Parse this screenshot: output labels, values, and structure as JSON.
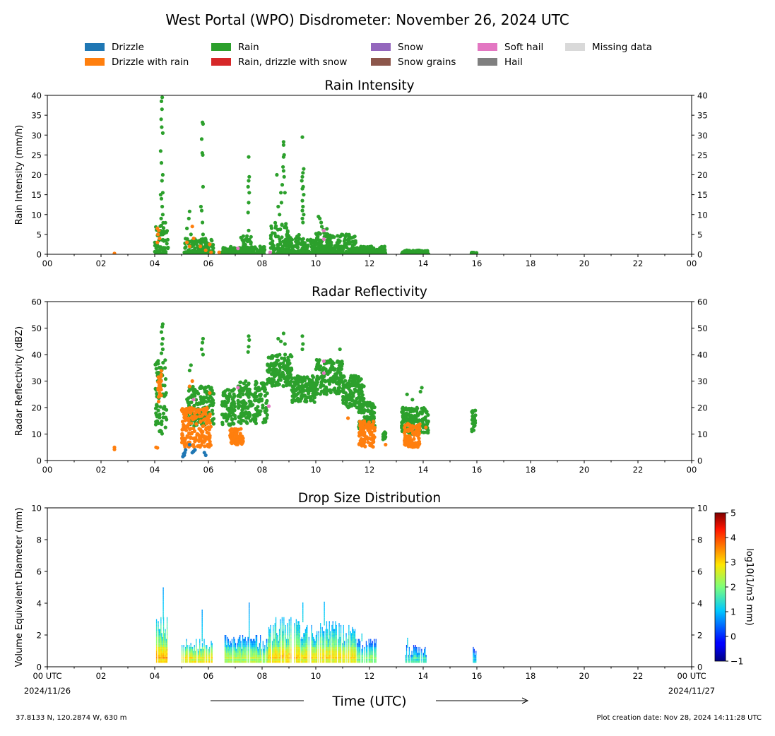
{
  "title": "West Portal (WPO) Disdrometer: November 26, 2024 UTC",
  "legend": [
    {
      "label": "Drizzle",
      "color": "#1f77b4"
    },
    {
      "label": "Drizzle with rain",
      "color": "#ff7f0e"
    },
    {
      "label": "Rain",
      "color": "#2ca02c"
    },
    {
      "label": "Rain, drizzle with snow",
      "color": "#d62728"
    },
    {
      "label": "Snow",
      "color": "#9467bd"
    },
    {
      "label": "Snow grains",
      "color": "#8c564b"
    },
    {
      "label": "Soft hail",
      "color": "#e377c2"
    },
    {
      "label": "Hail",
      "color": "#7f7f7f"
    },
    {
      "label": "Missing data",
      "color": "#d9d9d9"
    }
  ],
  "footer": {
    "location": "37.8133 N, 120.2874 W, 630 m",
    "created": "Plot creation date: Nov 28, 2024 14:11:28 UTC",
    "time_axis_label": "Time (UTC)"
  },
  "chart_data": [
    {
      "type": "scatter",
      "title": "Rain Intensity",
      "ylabel": "Rain Intensity (mm/h)",
      "xlim": [
        0,
        24
      ],
      "ylim": [
        0,
        40
      ],
      "yticks": [
        0,
        5,
        10,
        15,
        20,
        25,
        30,
        35,
        40
      ],
      "xticklabels": [
        "00",
        "02",
        "04",
        "06",
        "08",
        "10",
        "12",
        "14",
        "16",
        "18",
        "20",
        "22",
        "00"
      ],
      "series": [
        {
          "name": "Rain",
          "color": "#2ca02c",
          "segments": [
            {
              "x0": 4.0,
              "x1": 4.5,
              "ymax": 8
            },
            {
              "x0": 5.1,
              "x1": 6.2,
              "ymax": 4
            },
            {
              "x0": 6.5,
              "x1": 8.1,
              "ymax": 2
            },
            {
              "x0": 7.2,
              "x1": 7.6,
              "ymax": 5
            },
            {
              "x0": 8.3,
              "x1": 9.0,
              "ymax": 8
            },
            {
              "x0": 8.8,
              "x1": 9.5,
              "ymax": 5
            },
            {
              "x0": 9.5,
              "x1": 10.2,
              "ymax": 4
            },
            {
              "x0": 10.0,
              "x1": 10.5,
              "ymax": 7
            },
            {
              "x0": 10.4,
              "x1": 11.5,
              "ymax": 5
            },
            {
              "x0": 11.5,
              "x1": 12.6,
              "ymax": 2
            },
            {
              "x0": 13.2,
              "x1": 14.2,
              "ymax": 1
            },
            {
              "x0": 15.8,
              "x1": 16.0,
              "ymax": 0.5
            }
          ],
          "points": [
            [
              4.28,
              39.5
            ],
            [
              4.25,
              38.5
            ],
            [
              4.27,
              36.5
            ],
            [
              4.24,
              34
            ],
            [
              4.26,
              32
            ],
            [
              4.3,
              30.5
            ],
            [
              4.22,
              26
            ],
            [
              4.25,
              23
            ],
            [
              4.3,
              20
            ],
            [
              4.27,
              18.5
            ],
            [
              4.3,
              15.5
            ],
            [
              4.22,
              15
            ],
            [
              4.25,
              14
            ],
            [
              4.28,
              12
            ],
            [
              4.3,
              10
            ],
            [
              4.24,
              9
            ],
            [
              4.3,
              5
            ],
            [
              5.3,
              10.8
            ],
            [
              5.27,
              9
            ],
            [
              5.2,
              6.5
            ],
            [
              5.35,
              5
            ],
            [
              5.78,
              33.2
            ],
            [
              5.8,
              32.8
            ],
            [
              5.75,
              29
            ],
            [
              5.77,
              25.5
            ],
            [
              5.79,
              25
            ],
            [
              5.8,
              17
            ],
            [
              5.72,
              12
            ],
            [
              5.75,
              11
            ],
            [
              5.78,
              8
            ],
            [
              5.8,
              5
            ],
            [
              7.5,
              24.5
            ],
            [
              7.52,
              19.5
            ],
            [
              7.5,
              18.5
            ],
            [
              7.48,
              17
            ],
            [
              7.52,
              15.5
            ],
            [
              7.5,
              13
            ],
            [
              7.48,
              10.5
            ],
            [
              7.5,
              6
            ],
            [
              8.55,
              20
            ],
            [
              8.8,
              28.3
            ],
            [
              8.8,
              27.5
            ],
            [
              8.82,
              25
            ],
            [
              8.8,
              24.5
            ],
            [
              8.78,
              22
            ],
            [
              8.8,
              21
            ],
            [
              8.82,
              19.5
            ],
            [
              8.75,
              17.5
            ],
            [
              8.85,
              15.5
            ],
            [
              8.7,
              15.5
            ],
            [
              8.72,
              13
            ],
            [
              8.6,
              12
            ],
            [
              8.65,
              10
            ],
            [
              9.5,
              29.5
            ],
            [
              9.55,
              21.5
            ],
            [
              9.52,
              20.5
            ],
            [
              9.5,
              19.5
            ],
            [
              9.48,
              18.5
            ],
            [
              9.53,
              17
            ],
            [
              9.5,
              16.5
            ],
            [
              9.55,
              15
            ],
            [
              9.5,
              13.5
            ],
            [
              9.52,
              12
            ],
            [
              9.5,
              11
            ],
            [
              9.55,
              10
            ],
            [
              9.5,
              9
            ],
            [
              9.52,
              8
            ],
            [
              10.1,
              9.5
            ],
            [
              10.15,
              9
            ],
            [
              10.2,
              8
            ]
          ]
        },
        {
          "name": "Drizzle with rain",
          "color": "#ff7f0e",
          "points": [
            [
              2.5,
              0.2
            ],
            [
              4.1,
              6.5
            ],
            [
              4.15,
              6
            ],
            [
              4.12,
              5
            ],
            [
              4.18,
              4
            ],
            [
              4.1,
              3
            ],
            [
              5.2,
              3
            ],
            [
              5.4,
              7
            ],
            [
              5.45,
              4
            ],
            [
              5.3,
              2
            ],
            [
              5.7,
              2
            ],
            [
              5.9,
              1
            ],
            [
              6.05,
              2.5
            ],
            [
              6.1,
              0.5
            ],
            [
              6.4,
              0.5
            ]
          ]
        },
        {
          "name": "Soft hail",
          "color": "#e377c2",
          "points": [
            [
              7.1,
              1.5
            ],
            [
              8.3,
              0.5
            ],
            [
              10.3,
              6
            ],
            [
              10.3,
              3.8
            ]
          ]
        }
      ]
    },
    {
      "type": "scatter",
      "title": "Radar Reflectivity",
      "ylabel": "Radar Reflectivity (dBZ)",
      "xlim": [
        0,
        24
      ],
      "ylim": [
        0,
        60
      ],
      "yticks": [
        0,
        10,
        20,
        30,
        40,
        50,
        60
      ],
      "xticklabels": [
        "00",
        "02",
        "04",
        "06",
        "08",
        "10",
        "12",
        "14",
        "16",
        "18",
        "20",
        "22",
        "00"
      ],
      "series": [
        {
          "name": "Rain",
          "color": "#2ca02c",
          "segments": [
            {
              "x0": 4.0,
              "x1": 4.45,
              "ymin": 10,
              "ymax": 38
            },
            {
              "x0": 5.2,
              "x1": 6.2,
              "ymin": 13,
              "ymax": 28
            },
            {
              "x0": 6.5,
              "x1": 7.0,
              "ymin": 13,
              "ymax": 27
            },
            {
              "x0": 7.1,
              "x1": 8.2,
              "ymin": 14,
              "ymax": 30
            },
            {
              "x0": 8.2,
              "x1": 9.1,
              "ymin": 28,
              "ymax": 40
            },
            {
              "x0": 9.1,
              "x1": 10.0,
              "ymin": 22,
              "ymax": 32
            },
            {
              "x0": 10.0,
              "x1": 11.0,
              "ymin": 25,
              "ymax": 38
            },
            {
              "x0": 11.0,
              "x1": 11.8,
              "ymin": 20,
              "ymax": 32
            },
            {
              "x0": 11.6,
              "x1": 12.2,
              "ymin": 12,
              "ymax": 22
            },
            {
              "x0": 12.5,
              "x1": 12.6,
              "ymin": 8,
              "ymax": 11
            },
            {
              "x0": 13.2,
              "x1": 14.2,
              "ymin": 10,
              "ymax": 20
            },
            {
              "x0": 15.8,
              "x1": 15.95,
              "ymin": 11,
              "ymax": 19
            }
          ],
          "points": [
            [
              4.3,
              51.5
            ],
            [
              4.28,
              50.5
            ],
            [
              4.25,
              48.5
            ],
            [
              4.3,
              46
            ],
            [
              4.27,
              44
            ],
            [
              4.3,
              42
            ],
            [
              4.25,
              40.5
            ],
            [
              4.4,
              12.5
            ],
            [
              5.8,
              46
            ],
            [
              5.78,
              44.5
            ],
            [
              5.75,
              42
            ],
            [
              5.8,
              40
            ],
            [
              5.35,
              36
            ],
            [
              5.3,
              34
            ],
            [
              7.5,
              47
            ],
            [
              7.52,
              45.5
            ],
            [
              7.5,
              43
            ],
            [
              7.48,
              41
            ],
            [
              8.8,
              48
            ],
            [
              8.6,
              46
            ],
            [
              8.7,
              45
            ],
            [
              8.85,
              44
            ],
            [
              9.5,
              47
            ],
            [
              9.52,
              44
            ],
            [
              9.5,
              42
            ],
            [
              10.9,
              42
            ],
            [
              13.4,
              25
            ],
            [
              13.6,
              23
            ],
            [
              13.95,
              27.5
            ],
            [
              13.9,
              26
            ]
          ]
        },
        {
          "name": "Drizzle with rain",
          "color": "#ff7f0e",
          "segments": [
            {
              "x0": 4.1,
              "x1": 4.25,
              "ymin": 22,
              "ymax": 34
            },
            {
              "x0": 5.0,
              "x1": 6.1,
              "ymin": 5,
              "ymax": 20
            },
            {
              "x0": 6.8,
              "x1": 7.3,
              "ymin": 6,
              "ymax": 12
            },
            {
              "x0": 11.6,
              "x1": 12.2,
              "ymin": 5,
              "ymax": 15
            },
            {
              "x0": 13.3,
              "x1": 13.9,
              "ymin": 5,
              "ymax": 14
            }
          ],
          "points": [
            [
              2.5,
              5
            ],
            [
              2.5,
              4.2
            ],
            [
              4.05,
              5
            ],
            [
              4.1,
              4.8
            ],
            [
              5.4,
              30
            ],
            [
              5.3,
              28
            ],
            [
              6.05,
              25.5
            ],
            [
              11.2,
              16
            ],
            [
              12.6,
              6
            ],
            [
              14.1,
              12.5
            ]
          ]
        },
        {
          "name": "Drizzle",
          "color": "#1f77b4",
          "points": [
            [
              5.05,
              1.5
            ],
            [
              5.1,
              2
            ],
            [
              5.08,
              2.5
            ],
            [
              5.12,
              3
            ],
            [
              5.15,
              4
            ],
            [
              5.4,
              3
            ],
            [
              5.45,
              3.5
            ],
            [
              5.5,
              4
            ],
            [
              5.3,
              6
            ],
            [
              5.9,
              2
            ],
            [
              5.85,
              3
            ]
          ]
        },
        {
          "name": "Soft hail",
          "color": "#e377c2",
          "points": [
            [
              5.45,
              23
            ],
            [
              7.1,
              27.5
            ],
            [
              8.25,
              20.5
            ],
            [
              10.3,
              37.5
            ],
            [
              10.3,
              33
            ]
          ]
        }
      ]
    },
    {
      "type": "heatmap",
      "title": "Drop Size Distribution",
      "ylabel": "Volume Equivalent Diameter (mm)",
      "xlim": [
        0,
        24
      ],
      "ylim": [
        0,
        10
      ],
      "yticks": [
        0,
        2,
        4,
        6,
        8,
        10
      ],
      "xticklabels": [
        "00 UTC",
        "02",
        "04",
        "06",
        "08",
        "10",
        "12",
        "14",
        "16",
        "18",
        "20",
        "22",
        "00 UTC"
      ],
      "date_start": "2024/11/26",
      "date_end": "2024/11/27",
      "colorbar": {
        "label": "log10(1/m3 mm)",
        "min": -1,
        "max": 5,
        "ticks": [
          -1,
          0,
          1,
          2,
          3,
          4,
          5
        ]
      },
      "blocks": [
        {
          "x0": 4.05,
          "x1": 4.45,
          "dmax": 3.0,
          "peak": 3.6,
          "spike": 5.0,
          "spike_x": 4.3
        },
        {
          "x0": 5.0,
          "x1": 6.15,
          "dmax": 1.6,
          "peak": 3.4,
          "spike": 3.6,
          "spike_x": 5.75
        },
        {
          "x0": 6.6,
          "x1": 8.2,
          "dmax": 1.8,
          "peak": 2.9,
          "spike": 4.0,
          "spike_x": 7.5
        },
        {
          "x0": 8.2,
          "x1": 9.4,
          "dmax": 2.8,
          "peak": 3.4,
          "spike": 4.0,
          "spike_x": 9.5
        },
        {
          "x0": 9.4,
          "x1": 11.5,
          "dmax": 2.6,
          "peak": 3.3,
          "spike": 4.0,
          "spike_x": 10.3
        },
        {
          "x0": 11.5,
          "x1": 12.25,
          "dmax": 1.6,
          "peak": 2.6,
          "spike": 2.0,
          "spike_x": 11.7
        },
        {
          "x0": 13.3,
          "x1": 14.1,
          "dmax": 1.2,
          "peak": 2.3,
          "spike": 1.8,
          "spike_x": 13.4
        },
        {
          "x0": 15.85,
          "x1": 15.95,
          "dmax": 1.2,
          "peak": 2.0,
          "spike": 1.2,
          "spike_x": 15.9
        }
      ]
    }
  ]
}
